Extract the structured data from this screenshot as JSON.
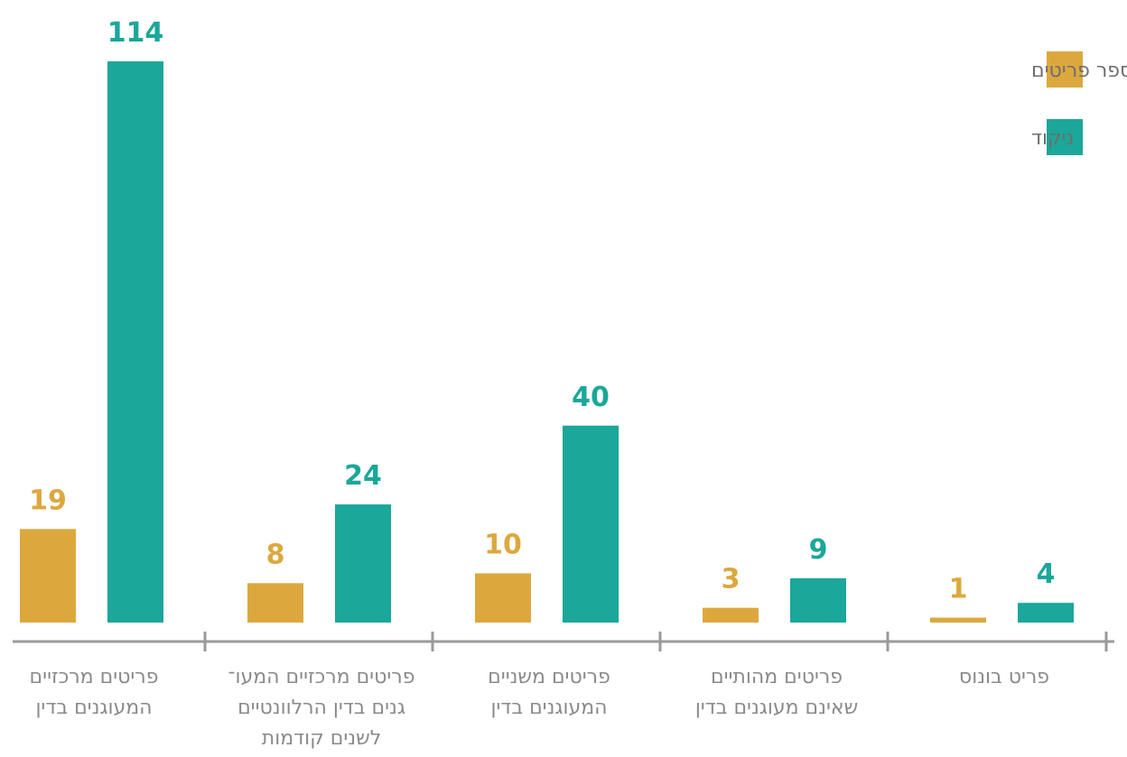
{
  "chart_data": {
    "type": "bar",
    "direction": "rtl",
    "categories": [
      [
        "פריטים מרכזיים",
        "המעוגנים בדין"
      ],
      [
        "פריטים מרכזיים המעו־",
        "גנים בדין הרלוונטיים",
        "לשנים קודמות"
      ],
      [
        "פריטים משניים",
        "המעוגנים בדין"
      ],
      [
        "פריטים מהותיים",
        "שאינם מעוגנים בדין"
      ],
      [
        "פריט בונוס"
      ]
    ],
    "series": [
      {
        "name": "מספר פריטים",
        "color": "#DCA83E",
        "values": [
          19,
          8,
          10,
          3,
          1
        ]
      },
      {
        "name": "ניקוד",
        "color": "#1BA79A",
        "values": [
          114,
          24,
          40,
          9,
          4
        ]
      }
    ],
    "ylim": [
      0,
      114
    ],
    "grid": false,
    "legend": "top-right",
    "axis_color": "#9a9a9a"
  }
}
